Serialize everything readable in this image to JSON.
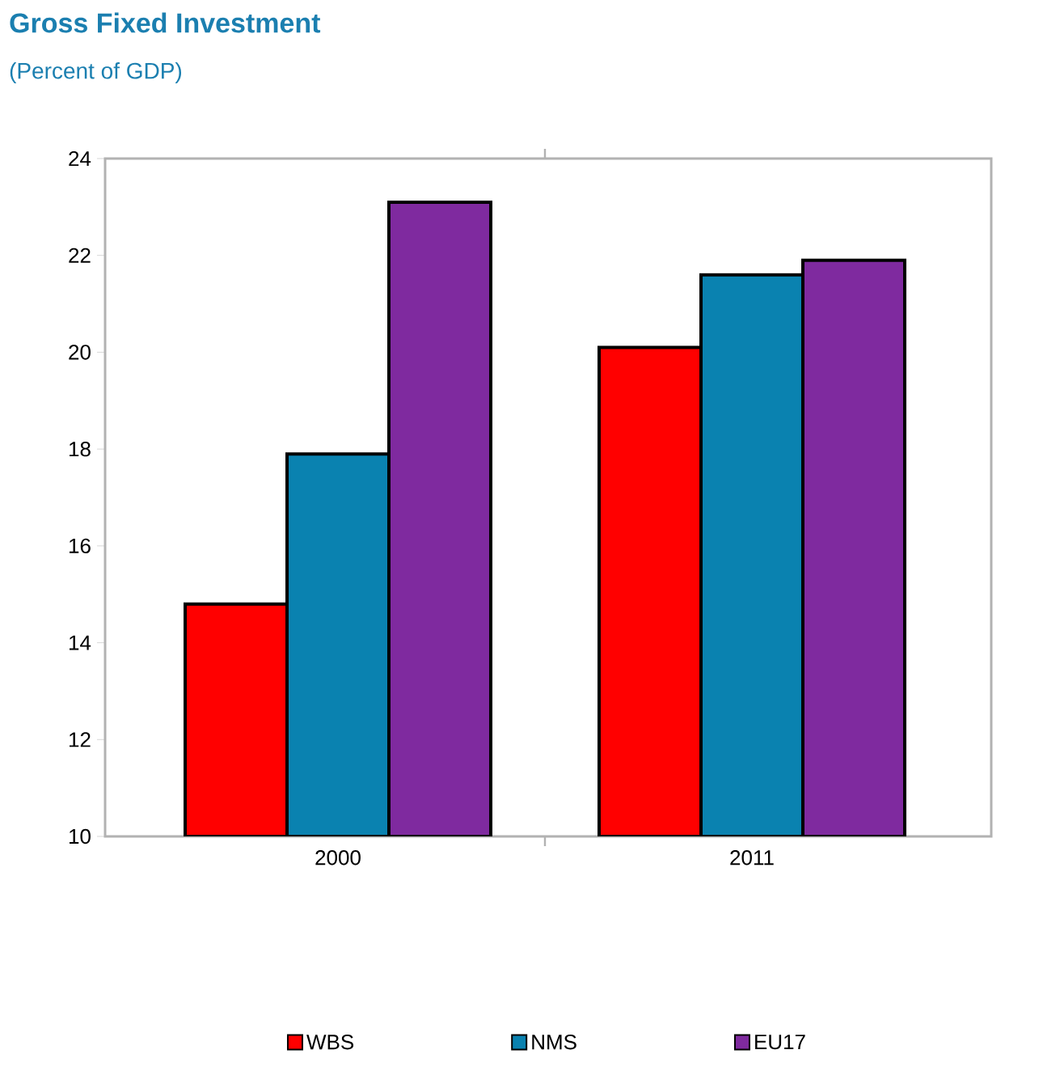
{
  "chart_data": {
    "type": "bar",
    "title": "Gross Fixed Investment",
    "subtitle": "(Percent of GDP)",
    "categories": [
      "2000",
      "2011"
    ],
    "series": [
      {
        "name": "WBS",
        "color": "#ff0000",
        "values": [
          14.8,
          20.1
        ]
      },
      {
        "name": "NMS",
        "color": "#0a82b0",
        "values": [
          17.9,
          21.6
        ]
      },
      {
        "name": "EU17",
        "color": "#7f2a9f",
        "values": [
          23.1,
          21.9
        ]
      }
    ],
    "ylim": [
      10,
      24
    ],
    "yticks": [
      10,
      12,
      14,
      16,
      18,
      20,
      22,
      24
    ],
    "legend": "bottom"
  }
}
